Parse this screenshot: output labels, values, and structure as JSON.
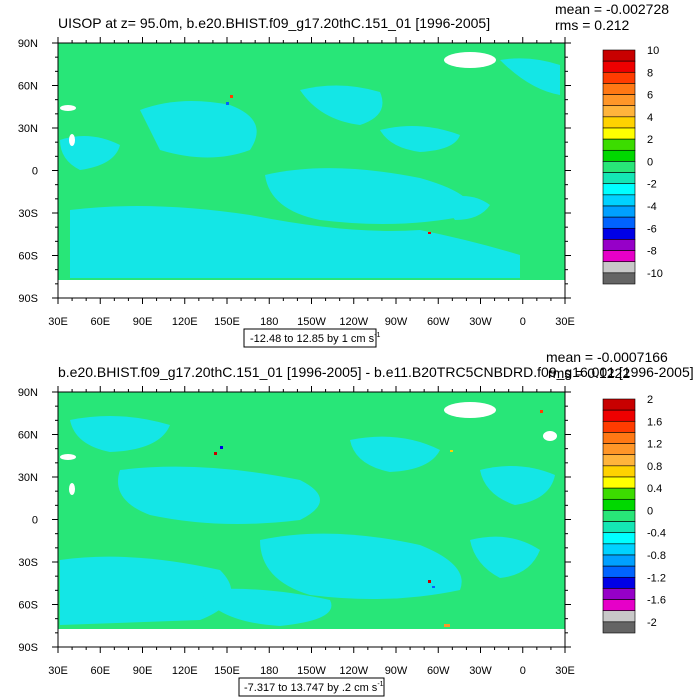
{
  "chart_data": [
    {
      "type": "heatmap",
      "title": "UISOP at z=  95.0m, b.e20.BHIST.f09_g17.20thC.151_01 [1996-2005]",
      "mean_label": "mean = -0.002728",
      "rms_label": "rms = 0.212",
      "range_label": "-12.48 to 12.85 by 1 cm s",
      "range_sup": "-1",
      "x_ticks": [
        "30E",
        "60E",
        "90E",
        "120E",
        "150E",
        "180",
        "150W",
        "120W",
        "90W",
        "60W",
        "30W",
        "0",
        "30E"
      ],
      "y_ticks": [
        "90N",
        "60N",
        "30N",
        "0",
        "30S",
        "60S",
        "90S"
      ],
      "colorbar_labels": [
        "10",
        "8",
        "6",
        "4",
        "2",
        "0",
        "-2",
        "-4",
        "-6",
        "-8",
        "-10"
      ],
      "colorbar_colors": [
        "#c80000",
        "#ee0000",
        "#ff3c00",
        "#ff7814",
        "#ff9628",
        "#ffb43c",
        "#ffd200",
        "#ffff00",
        "#3cdc00",
        "#00d800",
        "#28e678",
        "#14e6b4",
        "#00ffff",
        "#00d2ff",
        "#00a0ff",
        "#0064ff",
        "#0000e6",
        "#9600c8",
        "#e600c8",
        "#c8c8c8",
        "#646464"
      ],
      "dominant_value_range": [
        -1,
        1
      ],
      "units": "cm s-1"
    },
    {
      "type": "heatmap",
      "title": "b.e20.BHIST.f09_g17.20thC.151_01 [1996-2005] - b.e11.B20TRC5CNBDRD.f09_g16.001 [1996-2005]",
      "mean_label": "mean = -0.0007166",
      "rms_label": "rms = 0.1222",
      "range_label": "-7.317 to 13.747 by .2 cm s",
      "range_sup": "-1",
      "x_ticks": [
        "30E",
        "60E",
        "90E",
        "120E",
        "150E",
        "180",
        "150W",
        "120W",
        "90W",
        "60W",
        "30W",
        "0",
        "30E"
      ],
      "y_ticks": [
        "90N",
        "60N",
        "30N",
        "0",
        "30S",
        "60S",
        "90S"
      ],
      "colorbar_labels": [
        "2",
        "1.6",
        "1.2",
        "0.8",
        "0.4",
        "0",
        "-0.4",
        "-0.8",
        "-1.2",
        "-1.6",
        "-2"
      ],
      "colorbar_colors": [
        "#c80000",
        "#ee0000",
        "#ff3c00",
        "#ff7814",
        "#ff9628",
        "#ffb43c",
        "#ffd200",
        "#ffff00",
        "#3cdc00",
        "#00d800",
        "#28e678",
        "#14e6b4",
        "#00ffff",
        "#00d2ff",
        "#00a0ff",
        "#0064ff",
        "#0000e6",
        "#9600c8",
        "#e600c8",
        "#c8c8c8",
        "#646464"
      ],
      "dominant_value_range": [
        -0.2,
        0.2
      ],
      "units": "cm s-1"
    }
  ],
  "colors": {
    "ocean_main": "#28e678",
    "ocean_alt": "#14e6e6",
    "land": "#ffffff"
  }
}
